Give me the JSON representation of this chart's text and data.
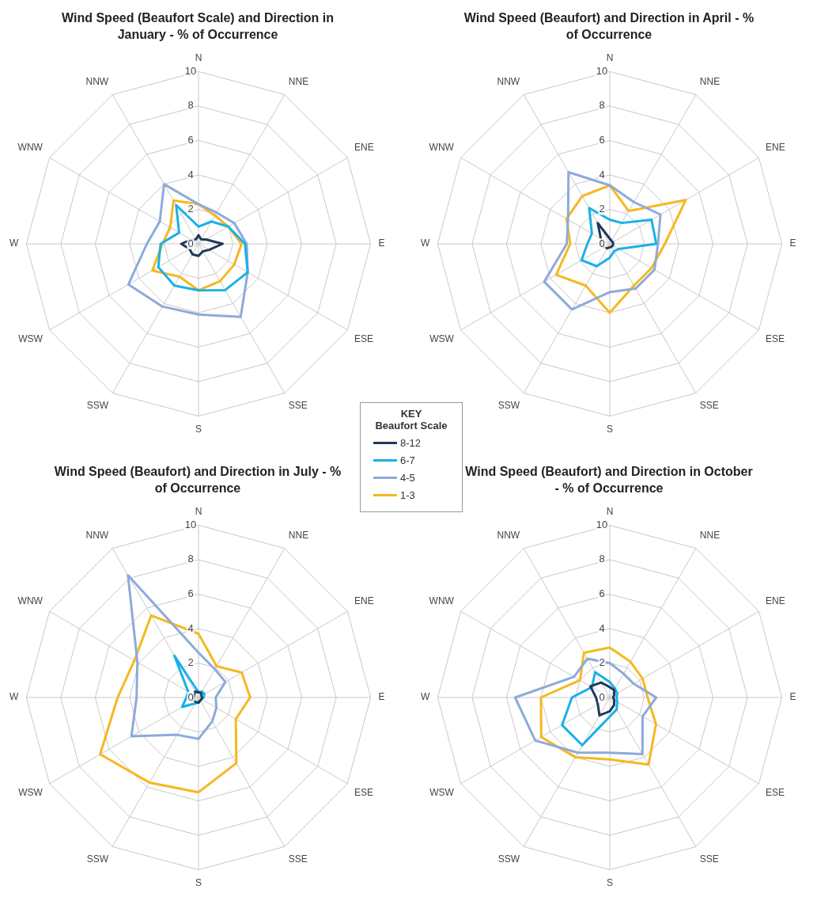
{
  "chart_data": [
    {
      "type": "radar",
      "title": "Wind Speed (Beaufort Scale) and Direction in January - % of Occurrence",
      "categories": [
        "N",
        "NNE",
        "ENE",
        "E",
        "ESE",
        "SSE",
        "S",
        "SSW",
        "WSW",
        "W",
        "WNW",
        "NNW"
      ],
      "ylim": [
        0,
        10
      ],
      "yticks": [
        0,
        2,
        4,
        6,
        8,
        10
      ],
      "grid": true,
      "marker": "none",
      "legend": "right",
      "legend_title": "Beaufort Scale",
      "annotations": [
        "KEY"
      ],
      "series": [
        {
          "name": "8-12",
          "color": "#1f3a5a",
          "values": [
            0.5,
            0.3,
            0.5,
            1.4,
            0.7,
            0.5,
            0.7,
            0.7,
            0.6,
            1.0,
            0.5,
            0.3
          ]
        },
        {
          "name": "6-7",
          "color": "#1ab0e8",
          "values": [
            1.0,
            1.5,
            2.0,
            2.7,
            3.3,
            3.1,
            2.7,
            2.8,
            2.7,
            2.2,
            1.3,
            2.6
          ]
        },
        {
          "name": "4-5",
          "color": "#8eaadb",
          "values": [
            2.3,
            2.1,
            2.4,
            2.8,
            3.3,
            4.9,
            4.1,
            4.2,
            4.7,
            3.0,
            2.6,
            4.0
          ]
        },
        {
          "name": "1-3",
          "color": "#f5b820",
          "values": [
            2.3,
            1.9,
            2.0,
            2.5,
            2.4,
            2.5,
            2.7,
            2.2,
            3.1,
            2.1,
            1.9,
            2.9
          ]
        }
      ]
    },
    {
      "type": "radar",
      "title": "Wind Speed (Beaufort) and Direction in April - % of Occurrence",
      "categories": [
        "N",
        "NNE",
        "ENE",
        "E",
        "ESE",
        "SSE",
        "S",
        "SSW",
        "WSW",
        "W",
        "WNW",
        "NNW"
      ],
      "ylim": [
        0,
        10
      ],
      "yticks": [
        0,
        2,
        4,
        6,
        8,
        10
      ],
      "grid": true,
      "marker": "none",
      "series": [
        {
          "color": "#1f3a5a",
          "values": [
            0.3,
            0.2,
            0.2,
            0.2,
            0.2,
            0.2,
            0.2,
            0.3,
            0.4,
            0.5,
            0.6,
            1.4
          ]
        },
        {
          "color": "#1ab0e8",
          "values": [
            1.4,
            1.4,
            2.8,
            2.7,
            0.6,
            0.5,
            0.8,
            1.5,
            1.9,
            1.3,
            1.2,
            2.4
          ]
        },
        {
          "color": "#8eaadb",
          "values": [
            3.4,
            2.8,
            3.4,
            2.8,
            3.0,
            3.0,
            2.8,
            4.4,
            4.4,
            2.5,
            2.8,
            4.8
          ]
        },
        {
          "color": "#f5b820",
          "values": [
            3.4,
            2.2,
            5.1,
            3.2,
            2.8,
            2.8,
            4.0,
            2.8,
            3.6,
            2.3,
            2.9,
            3.2
          ]
        }
      ]
    },
    {
      "type": "radar",
      "title": "Wind Speed (Beaufort) and Direction in July - % of Occurrence",
      "categories": [
        "N",
        "NNE",
        "ENE",
        "E",
        "ESE",
        "SSE",
        "S",
        "SSW",
        "WSW",
        "W",
        "WNW",
        "NNW"
      ],
      "ylim": [
        0,
        10
      ],
      "yticks": [
        0,
        2,
        4,
        6,
        8,
        10
      ],
      "grid": true,
      "marker": "none",
      "series": [
        {
          "color": "#1f3a5a",
          "values": [
            0.3,
            0.3,
            0.2,
            0.2,
            0.2,
            0.2,
            0.3,
            0.3,
            0.4,
            0.3,
            0.3,
            0.4
          ]
        },
        {
          "color": "#1ab0e8",
          "values": [
            0.3,
            0.4,
            0.4,
            0.3,
            0.2,
            0.2,
            0.3,
            0.4,
            1.1,
            0.7,
            0.7,
            2.8
          ]
        },
        {
          "color": "#8eaadb",
          "values": [
            2.6,
            1.9,
            1.8,
            1.0,
            1.2,
            1.6,
            2.4,
            2.5,
            4.5,
            3.6,
            4.1,
            8.2
          ]
        },
        {
          "color": "#f5b820",
          "values": [
            3.7,
            2.1,
            2.9,
            3.0,
            2.5,
            4.4,
            5.5,
            5.7,
            6.6,
            4.7,
            4.3,
            5.5
          ]
        }
      ]
    },
    {
      "type": "radar",
      "title": "Wind Speed (Beaufort) and Direction in October - % of Occurrence",
      "categories": [
        "N",
        "NNE",
        "ENE",
        "E",
        "ESE",
        "SSE",
        "S",
        "SSW",
        "WSW",
        "W",
        "WNW",
        "NNW"
      ],
      "ylim": [
        0,
        10
      ],
      "yticks": [
        0,
        2,
        4,
        6,
        8,
        10
      ],
      "grid": true,
      "marker": "none",
      "series": [
        {
          "color": "#1f3a5a",
          "values": [
            0.6,
            0.5,
            0.3,
            0.2,
            0.3,
            0.5,
            0.8,
            1.2,
            0.8,
            0.8,
            1.3,
            1.0
          ]
        },
        {
          "color": "#1ab0e8",
          "values": [
            0.9,
            0.6,
            0.5,
            0.4,
            0.5,
            0.8,
            1.1,
            3.2,
            3.2,
            2.2,
            1.2,
            1.7
          ]
        },
        {
          "color": "#8eaadb",
          "values": [
            2.0,
            1.6,
            1.6,
            2.7,
            2.2,
            3.8,
            3.2,
            3.7,
            5.0,
            5.5,
            2.4,
            2.6
          ]
        },
        {
          "color": "#f5b820",
          "values": [
            2.9,
            2.4,
            2.2,
            2.2,
            3.1,
            4.5,
            3.6,
            4.0,
            4.6,
            4.0,
            2.0,
            3.0
          ]
        }
      ]
    }
  ]
}
